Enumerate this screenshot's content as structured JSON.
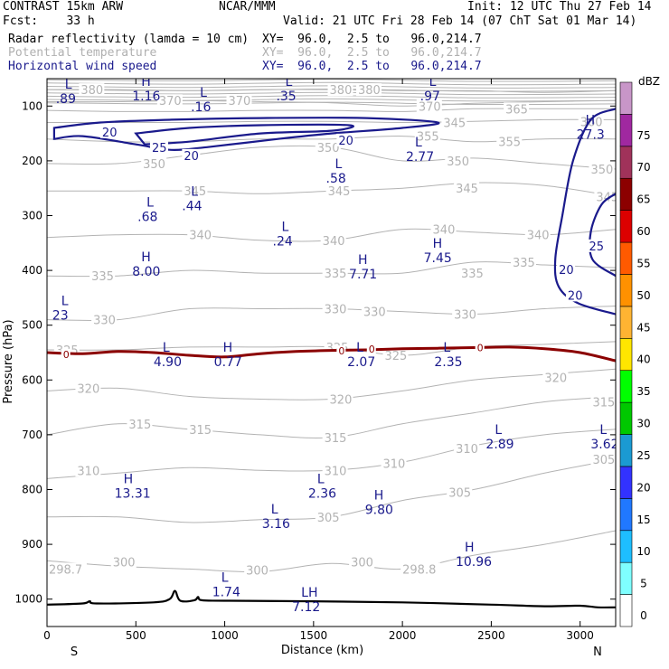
{
  "header": {
    "title_left": "CONTRAST 15km ARW",
    "title_center": "NCAR/MMM",
    "init": "Init: 12 UTC Thu 27 Feb 14",
    "fcst": "Fcst:    33 h",
    "valid": "Valid: 21 UTC Fri 28 Feb 14 (07 ChT Sat 01 Mar 14)",
    "field1_name": "Radar reflectivity (lamda = 10 cm)",
    "field1_xy": "XY=  96.0,  2.5 to   96.0,214.7",
    "field2_name": "Potential temperature",
    "field2_xy": "XY=  96.0,  2.5 to   96.0,214.7",
    "field3_name": "Horizontal wind speed",
    "field3_xy": "XY=  96.0,  2.5 to   96.0,214.7"
  },
  "colors": {
    "theta": "#b3b3b3",
    "wind": "#1a1a8c",
    "freezing": "#8b0000",
    "terrain": "#000000"
  },
  "chart_data": {
    "type": "contour-cross-section",
    "xlabel": "Distance (km)",
    "ylabel": "Pressure (hPa)",
    "xlim": [
      0,
      3200
    ],
    "ylim": [
      1050,
      50
    ],
    "x_ticks": [
      "0",
      "500",
      "1000",
      "1500",
      "2000",
      "2500",
      "3000"
    ],
    "x_tick_values": [
      0,
      500,
      1000,
      1500,
      2000,
      2500,
      3000
    ],
    "y_ticks": [
      "100",
      "200",
      "300",
      "400",
      "500",
      "600",
      "700",
      "800",
      "900",
      "1000"
    ],
    "y_tick_values": [
      100,
      200,
      300,
      400,
      500,
      600,
      700,
      800,
      900,
      1000
    ],
    "x_end_labels": {
      "left": "S",
      "right": "N"
    },
    "colorbar": {
      "unit": "dBZ",
      "levels": [
        "0",
        "5",
        "10",
        "15",
        "20",
        "25",
        "30",
        "35",
        "40",
        "45",
        "50",
        "55",
        "60",
        "65",
        "70",
        "75"
      ],
      "colors": [
        "#ffffff",
        "#7fffff",
        "#1ebeff",
        "#2078ff",
        "#3232ff",
        "#1b9ad2",
        "#00c800",
        "#00ff00",
        "#ffe600",
        "#ffb432",
        "#ff9100",
        "#ff5a00",
        "#dc0000",
        "#8c0000",
        "#a0325a",
        "#a028a0",
        "#c896c8"
      ]
    },
    "theta_labels": [
      {
        "text": "380",
        "x": 190,
        "p": 70
      },
      {
        "text": "370",
        "x": 630,
        "p": 90
      },
      {
        "text": "370",
        "x": 1020,
        "p": 90
      },
      {
        "text": "380",
        "x": 1590,
        "p": 70
      },
      {
        "text": "380",
        "x": 1750,
        "p": 70
      },
      {
        "text": "370",
        "x": 2090,
        "p": 100
      },
      {
        "text": "365",
        "x": 2580,
        "p": 105
      },
      {
        "text": "345",
        "x": 2230,
        "p": 130
      },
      {
        "text": "360",
        "x": 3000,
        "p": 128
      },
      {
        "text": "355",
        "x": 2080,
        "p": 155
      },
      {
        "text": "355",
        "x": 2540,
        "p": 165
      },
      {
        "text": "350",
        "x": 540,
        "p": 205
      },
      {
        "text": "350",
        "x": 1520,
        "p": 175
      },
      {
        "text": "350",
        "x": 2250,
        "p": 200
      },
      {
        "text": "350",
        "x": 3060,
        "p": 215
      },
      {
        "text": "345",
        "x": 770,
        "p": 255
      },
      {
        "text": "345",
        "x": 1580,
        "p": 255
      },
      {
        "text": "345",
        "x": 2300,
        "p": 250
      },
      {
        "text": "345",
        "x": 3090,
        "p": 265
      },
      {
        "text": "340",
        "x": 800,
        "p": 335
      },
      {
        "text": "340",
        "x": 1550,
        "p": 345
      },
      {
        "text": "340",
        "x": 2170,
        "p": 325
      },
      {
        "text": "340",
        "x": 2700,
        "p": 335
      },
      {
        "text": "335",
        "x": 250,
        "p": 410
      },
      {
        "text": "335",
        "x": 1560,
        "p": 405
      },
      {
        "text": "335",
        "x": 2330,
        "p": 405
      },
      {
        "text": "335",
        "x": 2620,
        "p": 385
      },
      {
        "text": "330",
        "x": 260,
        "p": 490
      },
      {
        "text": "330",
        "x": 1560,
        "p": 470
      },
      {
        "text": "330",
        "x": 1780,
        "p": 475
      },
      {
        "text": "330",
        "x": 2290,
        "p": 480
      },
      {
        "text": "325",
        "x": 50,
        "p": 545
      },
      {
        "text": "325",
        "x": 1570,
        "p": 540
      },
      {
        "text": "325",
        "x": 1900,
        "p": 555
      },
      {
        "text": "320",
        "x": 170,
        "p": 615
      },
      {
        "text": "320",
        "x": 1590,
        "p": 635
      },
      {
        "text": "320",
        "x": 2800,
        "p": 595
      },
      {
        "text": "315",
        "x": 460,
        "p": 680
      },
      {
        "text": "315",
        "x": 800,
        "p": 690
      },
      {
        "text": "315",
        "x": 1560,
        "p": 705
      },
      {
        "text": "315",
        "x": 3070,
        "p": 640
      },
      {
        "text": "310",
        "x": 170,
        "p": 765
      },
      {
        "text": "310",
        "x": 1560,
        "p": 765
      },
      {
        "text": "310",
        "x": 1890,
        "p": 752
      },
      {
        "text": "310",
        "x": 2300,
        "p": 725
      },
      {
        "text": "305",
        "x": 1520,
        "p": 850
      },
      {
        "text": "305",
        "x": 2260,
        "p": 805
      },
      {
        "text": "305",
        "x": 3070,
        "p": 745
      },
      {
        "text": "300",
        "x": 370,
        "p": 932
      },
      {
        "text": "300",
        "x": 1120,
        "p": 947
      },
      {
        "text": "300",
        "x": 1710,
        "p": 932
      },
      {
        "text": "298.7",
        "x": 10,
        "p": 945
      },
      {
        "text": "298.8",
        "x": 2000,
        "p": 945
      }
    ],
    "wind_labels": [
      {
        "text": "20",
        "x": 310,
        "p": 147
      },
      {
        "text": "25",
        "x": 590,
        "p": 175
      },
      {
        "text": "20",
        "x": 770,
        "p": 190
      },
      {
        "text": "20",
        "x": 1640,
        "p": 162
      },
      {
        "text": "25",
        "x": 3050,
        "p": 355
      },
      {
        "text": "20",
        "x": 2880,
        "p": 398
      },
      {
        "text": "20",
        "x": 2930,
        "p": 445
      }
    ],
    "freezing_labels": [
      {
        "text": "0",
        "x": 90,
        "p": 553
      },
      {
        "text": "0",
        "x": 1640,
        "p": 547
      },
      {
        "text": "0",
        "x": 1810,
        "p": 543
      },
      {
        "text": "0",
        "x": 2420,
        "p": 541
      }
    ],
    "extrema": [
      {
        "type": "L",
        "value": ".89",
        "x": 80,
        "p": 75
      },
      {
        "type": "H",
        "value": "1.16",
        "x": 510,
        "p": 70
      },
      {
        "type": "L",
        "value": ".16",
        "x": 840,
        "p": 90
      },
      {
        "type": "L",
        "value": ".35",
        "x": 1320,
        "p": 70
      },
      {
        "type": "L",
        "value": ".97",
        "x": 2130,
        "p": 70
      },
      {
        "type": "H",
        "value": "27.3",
        "x": 3010,
        "p": 140
      },
      {
        "type": "L",
        "value": "2.77",
        "x": 2050,
        "p": 180
      },
      {
        "type": "L",
        "value": ".58",
        "x": 1600,
        "p": 220
      },
      {
        "type": "L",
        "value": ".44",
        "x": 790,
        "p": 270
      },
      {
        "type": "L",
        "value": ".68",
        "x": 540,
        "p": 290
      },
      {
        "type": "L",
        "value": ".24",
        "x": 1300,
        "p": 335
      },
      {
        "type": "H",
        "value": "7.45",
        "x": 2150,
        "p": 365
      },
      {
        "type": "H",
        "value": "8.00",
        "x": 510,
        "p": 390
      },
      {
        "type": "H",
        "value": "7.71",
        "x": 1730,
        "p": 395
      },
      {
        "type": "L",
        "value": "23",
        "x": 60,
        "p": 470
      },
      {
        "type": "L",
        "value": "4.90",
        "x": 630,
        "p": 555
      },
      {
        "type": "H",
        "value": "0.77",
        "x": 970,
        "p": 555
      },
      {
        "type": "L",
        "value": "2.07",
        "x": 1720,
        "p": 555
      },
      {
        "type": "L",
        "value": "2.35",
        "x": 2210,
        "p": 555
      },
      {
        "type": "L",
        "value": "2.89",
        "x": 2500,
        "p": 705
      },
      {
        "type": "L",
        "value": "3.62",
        "x": 3090,
        "p": 705
      },
      {
        "type": "H",
        "value": "13.31",
        "x": 410,
        "p": 795
      },
      {
        "type": "L",
        "value": "2.36",
        "x": 1500,
        "p": 795
      },
      {
        "type": "H",
        "value": "9.80",
        "x": 1820,
        "p": 825
      },
      {
        "type": "L",
        "value": "3.16",
        "x": 1240,
        "p": 850
      },
      {
        "type": "H",
        "value": "10.96",
        "x": 2330,
        "p": 920
      },
      {
        "type": "L",
        "value": "1.74",
        "x": 960,
        "p": 975
      },
      {
        "type": "LH",
        "value": "7.12",
        "x": 1410,
        "p": 1002
      }
    ],
    "theta_isentropes_p_at_x": {
      "x": [
        0,
        400,
        800,
        1200,
        1600,
        2000,
        2400,
        2800,
        3200
      ],
      "levels": [
        {
          "theta": 300,
          "p": [
            930,
            940,
            945,
            950,
            935,
            945,
            920,
            900,
            875
          ]
        },
        {
          "theta": 305,
          "p": [
            850,
            850,
            860,
            855,
            850,
            820,
            800,
            770,
            745
          ]
        },
        {
          "theta": 310,
          "p": [
            780,
            770,
            760,
            765,
            765,
            750,
            720,
            700,
            690
          ]
        },
        {
          "theta": 315,
          "p": [
            700,
            680,
            690,
            700,
            705,
            680,
            660,
            640,
            630
          ]
        },
        {
          "theta": 320,
          "p": [
            620,
            615,
            630,
            635,
            635,
            620,
            600,
            590,
            580
          ]
        },
        {
          "theta": 325,
          "p": [
            545,
            545,
            540,
            540,
            540,
            555,
            540,
            535,
            530
          ]
        },
        {
          "theta": 330,
          "p": [
            490,
            490,
            470,
            470,
            470,
            475,
            480,
            470,
            465
          ]
        },
        {
          "theta": 335,
          "p": [
            410,
            410,
            400,
            405,
            405,
            405,
            385,
            390,
            395
          ]
        },
        {
          "theta": 340,
          "p": [
            340,
            335,
            335,
            345,
            345,
            325,
            330,
            335,
            325
          ]
        },
        {
          "theta": 345,
          "p": [
            255,
            255,
            255,
            260,
            255,
            250,
            240,
            245,
            265
          ]
        },
        {
          "theta": 350,
          "p": [
            205,
            205,
            190,
            175,
            175,
            200,
            195,
            205,
            215
          ]
        },
        {
          "theta": 355,
          "p": [
            160,
            165,
            165,
            160,
            160,
            155,
            165,
            160,
            160
          ]
        },
        {
          "theta": 360,
          "p": [
            130,
            130,
            130,
            128,
            128,
            130,
            128,
            125,
            125
          ]
        },
        {
          "theta": 365,
          "p": [
            108,
            110,
            110,
            108,
            108,
            110,
            105,
            105,
            105
          ]
        },
        {
          "theta": 370,
          "p": [
            92,
            92,
            90,
            92,
            94,
            100,
            95,
            92,
            90
          ]
        },
        {
          "theta": 380,
          "p": [
            70,
            70,
            72,
            70,
            70,
            72,
            72,
            75,
            72
          ]
        }
      ]
    },
    "wind_contours": [
      {
        "speed": 20,
        "points": [
          [
            40,
            140
          ],
          [
            300,
            130
          ],
          [
            700,
            125
          ],
          [
            1200,
            122
          ],
          [
            1800,
            122
          ],
          [
            2200,
            130
          ],
          [
            2000,
            140
          ],
          [
            1600,
            150
          ],
          [
            1300,
            160
          ],
          [
            900,
            175
          ],
          [
            700,
            180
          ],
          [
            500,
            170
          ],
          [
            200,
            155
          ],
          [
            40,
            160
          ]
        ]
      },
      {
        "speed": 25,
        "points": [
          [
            500,
            150
          ],
          [
            800,
            140
          ],
          [
            1200,
            135
          ],
          [
            1700,
            135
          ],
          [
            1600,
            145
          ],
          [
            1200,
            150
          ],
          [
            800,
            165
          ],
          [
            550,
            170
          ]
        ]
      },
      {
        "speed": 20,
        "points": [
          [
            3200,
            105
          ],
          [
            3060,
            125
          ],
          [
            2960,
            200
          ],
          [
            2900,
            300
          ],
          [
            2860,
            380
          ],
          [
            2880,
            430
          ],
          [
            2990,
            460
          ],
          [
            3200,
            480
          ]
        ]
      },
      {
        "speed": 25,
        "points": [
          [
            3200,
            260
          ],
          [
            3120,
            280
          ],
          [
            3060,
            330
          ],
          [
            3070,
            380
          ],
          [
            3200,
            410
          ]
        ]
      }
    ],
    "freezing_level_p_at_x": {
      "x": [
        0,
        200,
        400,
        600,
        800,
        1000,
        1200,
        1400,
        1600,
        1800,
        2000,
        2200,
        2400,
        2600,
        2800,
        3000,
        3200
      ],
      "p": [
        550,
        552,
        548,
        550,
        555,
        558,
        552,
        548,
        546,
        545,
        543,
        542,
        541,
        540,
        543,
        550,
        565
      ]
    },
    "terrain_p_at_x": {
      "x": [
        0,
        200,
        240,
        280,
        600,
        690,
        720,
        750,
        830,
        850,
        870,
        1000,
        1500,
        2000,
        2500,
        2800,
        3000,
        3100,
        3200
      ],
      "p": [
        1010,
        1008,
        1004,
        1008,
        1006,
        1000,
        985,
        1003,
        1002,
        996,
        1002,
        1003,
        1004,
        1006,
        1010,
        1013,
        1012,
        1015,
        1015
      ]
    }
  }
}
